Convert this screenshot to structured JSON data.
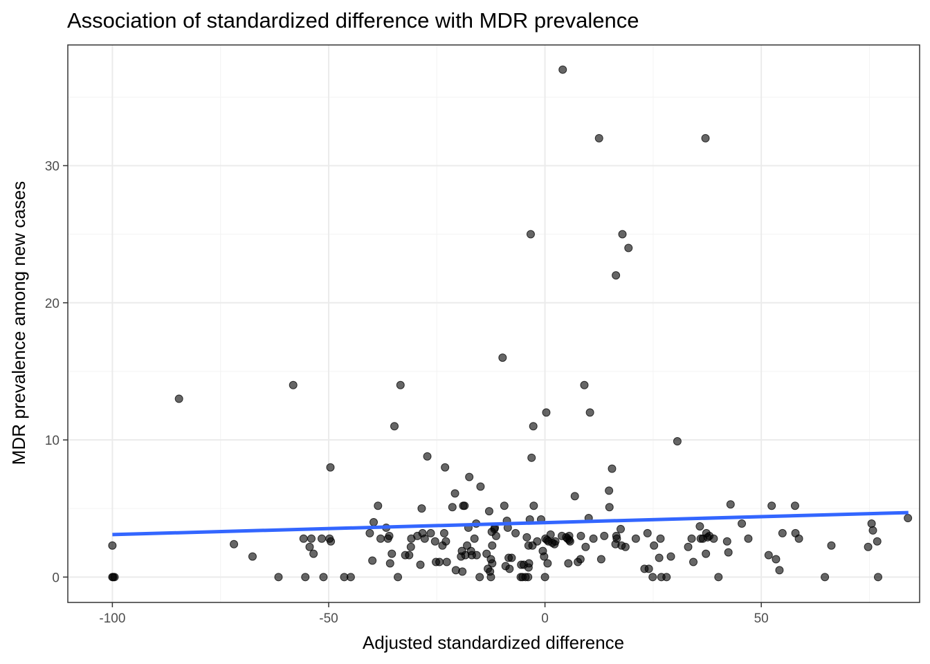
{
  "chart_data": {
    "type": "scatter",
    "title": "Association of standardized difference with MDR prevalence",
    "xlabel": "Adjusted standardized difference",
    "ylabel": "MDR prevalence among new cases",
    "xlim": [
      -110.3,
      86.6
    ],
    "ylim": [
      -1.85,
      38.8
    ],
    "x_major_ticks": [
      -100,
      -50,
      0,
      50
    ],
    "x_minor_ticks": [
      -75,
      -25,
      25,
      75
    ],
    "y_major_ticks": [
      0,
      10,
      20,
      30
    ],
    "y_minor_ticks": [
      5,
      15,
      25,
      35
    ],
    "x_tick_labels": [
      "-100",
      "-50",
      "0",
      "50"
    ],
    "y_tick_labels": [
      "0",
      "10",
      "20",
      "30"
    ],
    "grid": true,
    "trend_line": {
      "type": "linear",
      "x": [
        -100,
        84
      ],
      "y": [
        3.1,
        4.7
      ],
      "color": "#3366ff"
    },
    "points": [
      [
        -100,
        2.3
      ],
      [
        -100,
        0
      ],
      [
        -99.5,
        0
      ],
      [
        -99.8,
        0
      ],
      [
        -84.6,
        13
      ],
      [
        -71.9,
        2.4
      ],
      [
        -67.6,
        1.5
      ],
      [
        -61.6,
        0
      ],
      [
        -58.2,
        14
      ],
      [
        -55.8,
        2.8
      ],
      [
        -55.4,
        0
      ],
      [
        -54.4,
        2.2
      ],
      [
        -54,
        2.8
      ],
      [
        -53.5,
        1.7
      ],
      [
        -51.6,
        2.8
      ],
      [
        -51.2,
        0
      ],
      [
        -49.8,
        2.8
      ],
      [
        -49.6,
        8
      ],
      [
        -49.5,
        2.6
      ],
      [
        -46.4,
        0
      ],
      [
        -44.9,
        0
      ],
      [
        -40.5,
        3.2
      ],
      [
        -39.9,
        1.2
      ],
      [
        -39.6,
        4
      ],
      [
        -38.6,
        5.2
      ],
      [
        -38,
        2.8
      ],
      [
        -36.7,
        3.6
      ],
      [
        -36.3,
        2.8
      ],
      [
        -36,
        3
      ],
      [
        -35.8,
        1
      ],
      [
        -35.4,
        1.7
      ],
      [
        -34.8,
        11
      ],
      [
        -34,
        0
      ],
      [
        -33.4,
        14
      ],
      [
        -32.3,
        1.6
      ],
      [
        -31.4,
        1.6
      ],
      [
        -31,
        2.2
      ],
      [
        -30.9,
        2.8
      ],
      [
        -29.5,
        3
      ],
      [
        -28.8,
        0.9
      ],
      [
        -28.5,
        5
      ],
      [
        -28.3,
        3.2
      ],
      [
        -27.8,
        2.8
      ],
      [
        -27.2,
        8.8
      ],
      [
        -26.4,
        3.2
      ],
      [
        -25.4,
        2.6
      ],
      [
        -25.2,
        1.1
      ],
      [
        -24.4,
        1.1
      ],
      [
        -23.7,
        2.3
      ],
      [
        -23.3,
        3.2
      ],
      [
        -23.1,
        8
      ],
      [
        -22.9,
        2.6
      ],
      [
        -22.7,
        1.1
      ],
      [
        -21.4,
        5.1
      ],
      [
        -20.8,
        6.1
      ],
      [
        -20.6,
        0.5
      ],
      [
        -19.4,
        1.5
      ],
      [
        -19.2,
        1.9
      ],
      [
        -19.1,
        0.4
      ],
      [
        -18.9,
        5.2
      ],
      [
        -18.6,
        5.2
      ],
      [
        -18.4,
        1.6
      ],
      [
        -18,
        2.3
      ],
      [
        -17.7,
        3.6
      ],
      [
        -17.5,
        7.3
      ],
      [
        -17.1,
        1.9
      ],
      [
        -16.9,
        1.6
      ],
      [
        -16.3,
        2.8
      ],
      [
        -15.9,
        3.9
      ],
      [
        -15.8,
        1.6
      ],
      [
        -15.1,
        0
      ],
      [
        -14.9,
        6.6
      ],
      [
        -13.5,
        1.7
      ],
      [
        -13.2,
        0.6
      ],
      [
        -12.9,
        4.8
      ],
      [
        -12.7,
        0.4
      ],
      [
        -12.5,
        1.3
      ],
      [
        -12.5,
        0
      ],
      [
        -12.3,
        3.3
      ],
      [
        -12.2,
        1
      ],
      [
        -12.2,
        2.3
      ],
      [
        -11.7,
        3.5
      ],
      [
        -11.6,
        3.6
      ],
      [
        -11.3,
        3
      ],
      [
        -9.8,
        16
      ],
      [
        -9.4,
        5.2
      ],
      [
        -9.1,
        0.8
      ],
      [
        -8.8,
        4.1
      ],
      [
        -8.6,
        3.6
      ],
      [
        -8.4,
        1.4
      ],
      [
        -8.2,
        0.6
      ],
      [
        -7.7,
        1.4
      ],
      [
        -6.8,
        3.2
      ],
      [
        -5.6,
        0
      ],
      [
        -5.5,
        0.9
      ],
      [
        -5.2,
        0
      ],
      [
        -4.9,
        0.9
      ],
      [
        -4.5,
        0
      ],
      [
        -4.2,
        2.9
      ],
      [
        -3.9,
        0
      ],
      [
        -3.8,
        2.3
      ],
      [
        -3.8,
        0.7
      ],
      [
        -3.7,
        1
      ],
      [
        -3.5,
        4.2
      ],
      [
        -3.3,
        25
      ],
      [
        -3.1,
        8.7
      ],
      [
        -2.9,
        2.3
      ],
      [
        -2.7,
        11
      ],
      [
        -2.6,
        5.2
      ],
      [
        -1.8,
        2.6
      ],
      [
        -0.9,
        4.2
      ],
      [
        -0.5,
        1.9
      ],
      [
        -0.2,
        1.5
      ],
      [
        0,
        0
      ],
      [
        0.1,
        2.8
      ],
      [
        0.3,
        12
      ],
      [
        0.5,
        2.7
      ],
      [
        0.6,
        1
      ],
      [
        0.8,
        2.6
      ],
      [
        1.3,
        3.1
      ],
      [
        1.7,
        2.5
      ],
      [
        2.2,
        2.4
      ],
      [
        2.4,
        2.6
      ],
      [
        3.9,
        3
      ],
      [
        4.1,
        37
      ],
      [
        4.9,
        2.9
      ],
      [
        5.2,
        2.8
      ],
      [
        5.4,
        1
      ],
      [
        5.6,
        3
      ],
      [
        5.6,
        2.7
      ],
      [
        5.8,
        2.6
      ],
      [
        6.9,
        5.9
      ],
      [
        7.6,
        1.1
      ],
      [
        8.2,
        1.3
      ],
      [
        8.3,
        3
      ],
      [
        9.1,
        14
      ],
      [
        9.4,
        2.2
      ],
      [
        10.1,
        4.3
      ],
      [
        10.4,
        12
      ],
      [
        11.2,
        2.8
      ],
      [
        12.5,
        32
      ],
      [
        13,
        1.3
      ],
      [
        13.7,
        3
      ],
      [
        14.8,
        6.3
      ],
      [
        14.9,
        5.1
      ],
      [
        15.5,
        7.9
      ],
      [
        16.3,
        2.4
      ],
      [
        16.4,
        22
      ],
      [
        16.5,
        3
      ],
      [
        16.6,
        2.8
      ],
      [
        17.5,
        3.5
      ],
      [
        17.7,
        2.3
      ],
      [
        17.9,
        25
      ],
      [
        18.6,
        2.2
      ],
      [
        19.3,
        24
      ],
      [
        21,
        2.8
      ],
      [
        23,
        0.6
      ],
      [
        23.7,
        3.2
      ],
      [
        24,
        0.6
      ],
      [
        24.9,
        0
      ],
      [
        25.2,
        2.3
      ],
      [
        26.4,
        1.4
      ],
      [
        26.7,
        2.8
      ],
      [
        26.9,
        0
      ],
      [
        28.1,
        0
      ],
      [
        29.1,
        1.5
      ],
      [
        30.6,
        9.9
      ],
      [
        33.1,
        2.2
      ],
      [
        33.9,
        2.8
      ],
      [
        34.3,
        1.1
      ],
      [
        35.8,
        3.7
      ],
      [
        36,
        2.8
      ],
      [
        36.5,
        2.8
      ],
      [
        37.1,
        32
      ],
      [
        37.2,
        1.7
      ],
      [
        37.3,
        3.2
      ],
      [
        37.6,
        2.9
      ],
      [
        38,
        3
      ],
      [
        39,
        2.8
      ],
      [
        40.1,
        0
      ],
      [
        42.1,
        2.6
      ],
      [
        42.4,
        1.8
      ],
      [
        42.9,
        5.3
      ],
      [
        45.5,
        3.9
      ],
      [
        47,
        2.8
      ],
      [
        51.7,
        1.6
      ],
      [
        52.4,
        5.2
      ],
      [
        53.4,
        1.3
      ],
      [
        54.2,
        0.5
      ],
      [
        54.9,
        3.2
      ],
      [
        57.8,
        5.2
      ],
      [
        57.9,
        3.2
      ],
      [
        58.7,
        2.8
      ],
      [
        64.7,
        0
      ],
      [
        66.2,
        2.3
      ],
      [
        74.7,
        2.2
      ],
      [
        75.5,
        3.9
      ],
      [
        75.8,
        3.4
      ],
      [
        76.8,
        2.6
      ],
      [
        77,
        0
      ],
      [
        83.9,
        4.3
      ]
    ]
  }
}
